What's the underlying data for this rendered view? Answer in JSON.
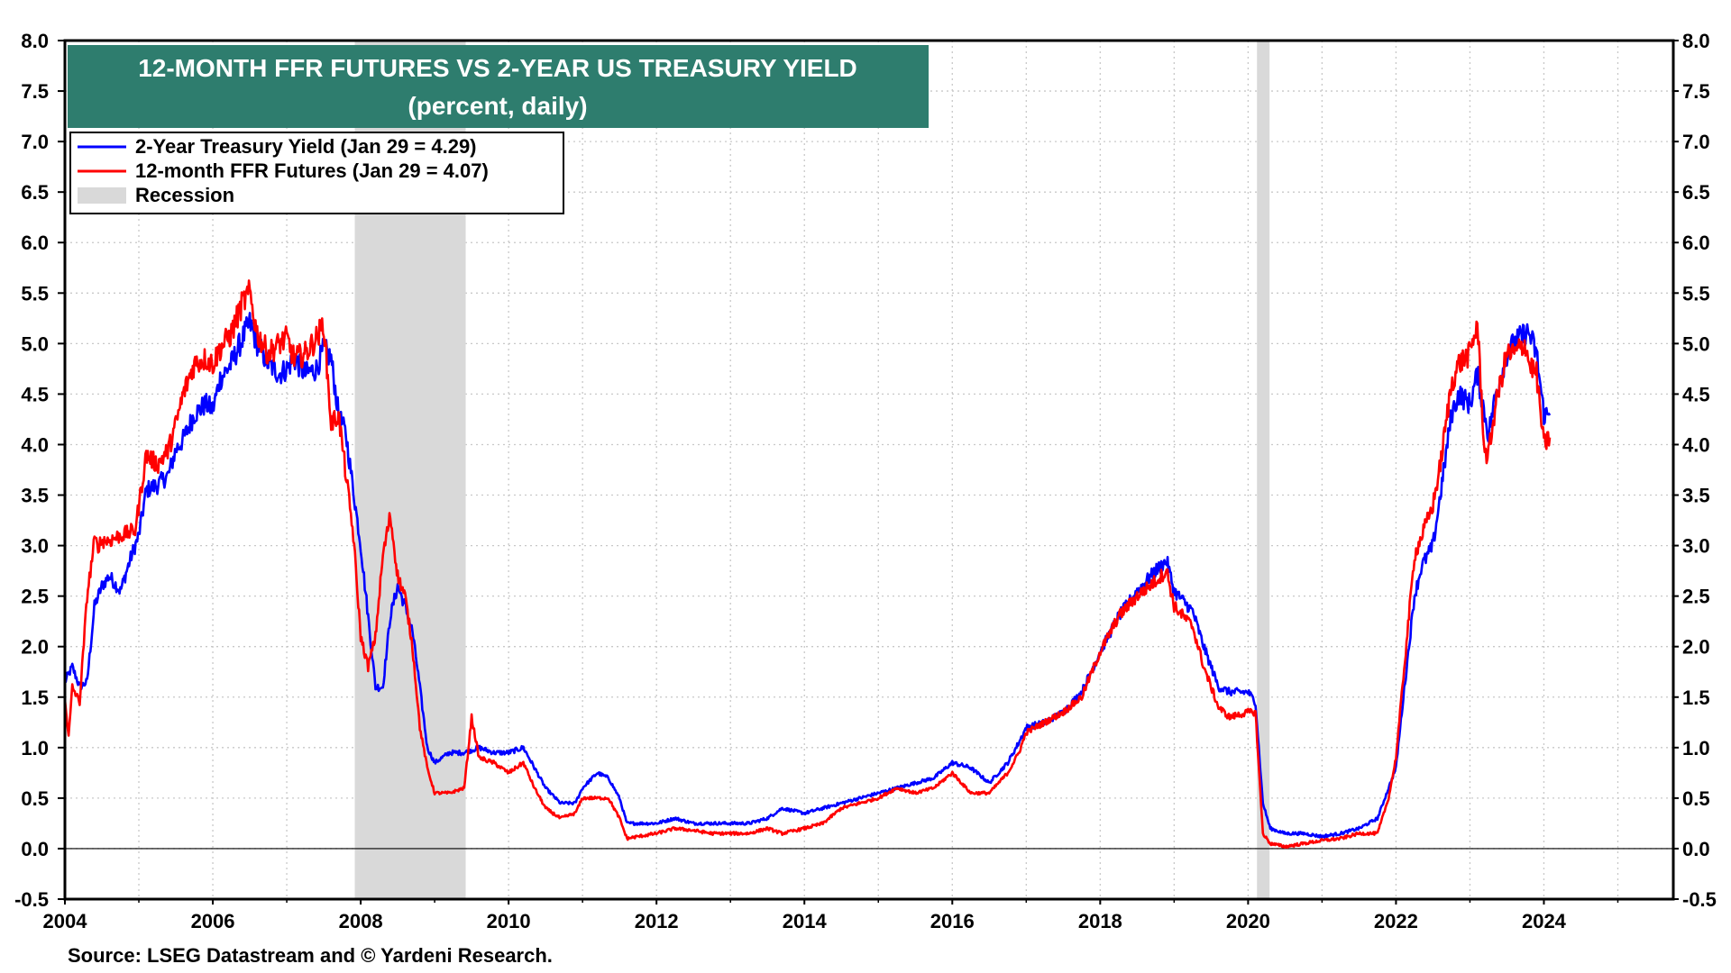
{
  "chart_data": {
    "type": "line",
    "title": "12-MONTH FFR FUTURES VS 2-YEAR US TREASURY YIELD",
    "subtitle": "(percent, daily)",
    "source": "Source: LSEG Datastream and © Yardeni Research.",
    "xlim": [
      2004,
      2025.75
    ],
    "ylim": [
      -0.5,
      8.0
    ],
    "x_ticks": [
      "2004",
      "2006",
      "2008",
      "2010",
      "2012",
      "2014",
      "2016",
      "2018",
      "2020",
      "2022",
      "2024"
    ],
    "y_ticks": [
      "-0.5",
      "0.0",
      "0.5",
      "1.0",
      "1.5",
      "2.0",
      "2.5",
      "3.0",
      "3.5",
      "4.0",
      "4.5",
      "5.0",
      "5.5",
      "6.0",
      "6.5",
      "7.0",
      "7.5",
      "8.0"
    ],
    "grid": true,
    "legend_position": "top-left",
    "colors": {
      "title_bg": "#2e7d6e",
      "treasury": "#0000ff",
      "futures": "#ff0000",
      "recession": "#d9d9d9"
    },
    "recessions": [
      {
        "start": 2007.92,
        "end": 2009.42
      },
      {
        "start": 2020.12,
        "end": 2020.29
      }
    ],
    "series": [
      {
        "name": "2-Year Treasury Yield (Jan 29 = 4.29)",
        "color": "#0000ff",
        "x": [
          2004.0,
          2004.1,
          2004.2,
          2004.3,
          2004.4,
          2004.5,
          2004.6,
          2004.75,
          2004.9,
          2005.0,
          2005.1,
          2005.25,
          2005.4,
          2005.5,
          2005.6,
          2005.75,
          2005.9,
          2006.0,
          2006.1,
          2006.25,
          2006.4,
          2006.5,
          2006.6,
          2006.75,
          2006.9,
          2007.0,
          2007.1,
          2007.25,
          2007.4,
          2007.5,
          2007.6,
          2007.7,
          2007.8,
          2007.9,
          2008.0,
          2008.1,
          2008.2,
          2008.3,
          2008.4,
          2008.5,
          2008.6,
          2008.7,
          2008.8,
          2008.9,
          2009.0,
          2009.2,
          2009.4,
          2009.6,
          2009.8,
          2010.0,
          2010.2,
          2010.35,
          2010.5,
          2010.7,
          2010.9,
          2011.0,
          2011.2,
          2011.35,
          2011.5,
          2011.6,
          2011.75,
          2012.0,
          2012.25,
          2012.5,
          2012.75,
          2013.0,
          2013.25,
          2013.5,
          2013.7,
          2014.0,
          2014.25,
          2014.5,
          2014.75,
          2015.0,
          2015.25,
          2015.5,
          2015.75,
          2016.0,
          2016.25,
          2016.5,
          2016.75,
          2016.9,
          2017.0,
          2017.25,
          2017.5,
          2017.75,
          2018.0,
          2018.25,
          2018.5,
          2018.75,
          2018.9,
          2019.0,
          2019.25,
          2019.4,
          2019.6,
          2019.75,
          2020.0,
          2020.1,
          2020.2,
          2020.3,
          2020.5,
          2020.75,
          2021.0,
          2021.25,
          2021.5,
          2021.75,
          2021.9,
          2022.0,
          2022.1,
          2022.25,
          2022.35,
          2022.5,
          2022.6,
          2022.75,
          2022.85,
          2023.0,
          2023.1,
          2023.2,
          2023.25,
          2023.35,
          2023.5,
          2023.6,
          2023.75,
          2023.8,
          2023.9,
          2024.0,
          2024.08
        ],
        "y": [
          1.65,
          1.8,
          1.6,
          1.65,
          2.4,
          2.6,
          2.7,
          2.55,
          2.9,
          3.1,
          3.55,
          3.6,
          3.7,
          3.95,
          4.05,
          4.3,
          4.4,
          4.35,
          4.65,
          4.8,
          5.05,
          5.2,
          5.0,
          4.8,
          4.7,
          4.75,
          4.85,
          4.7,
          4.75,
          4.95,
          4.85,
          4.3,
          4.1,
          3.55,
          3.0,
          2.3,
          1.6,
          1.6,
          2.3,
          2.6,
          2.4,
          2.15,
          1.6,
          1.0,
          0.85,
          0.95,
          0.95,
          1.0,
          0.95,
          0.95,
          1.0,
          0.8,
          0.6,
          0.45,
          0.45,
          0.6,
          0.75,
          0.7,
          0.5,
          0.25,
          0.25,
          0.25,
          0.3,
          0.25,
          0.25,
          0.25,
          0.25,
          0.3,
          0.4,
          0.35,
          0.4,
          0.45,
          0.5,
          0.55,
          0.6,
          0.65,
          0.7,
          0.85,
          0.8,
          0.65,
          0.85,
          1.05,
          1.2,
          1.25,
          1.35,
          1.55,
          1.95,
          2.3,
          2.55,
          2.75,
          2.85,
          2.55,
          2.35,
          2.0,
          1.6,
          1.55,
          1.55,
          1.45,
          0.45,
          0.2,
          0.15,
          0.15,
          0.12,
          0.15,
          0.2,
          0.3,
          0.6,
          0.8,
          1.5,
          2.5,
          2.8,
          3.0,
          3.5,
          4.3,
          4.5,
          4.4,
          4.7,
          4.3,
          4.1,
          4.5,
          4.9,
          5.0,
          5.1,
          5.1,
          4.9,
          4.3,
          4.29
        ]
      },
      {
        "name": "12-month FFR Futures (Jan 29 = 4.07)",
        "color": "#ff0000",
        "x": [
          2004.0,
          2004.05,
          2004.1,
          2004.2,
          2004.3,
          2004.4,
          2004.45,
          2004.5,
          2004.6,
          2004.75,
          2004.95,
          2005.1,
          2005.25,
          2005.4,
          2005.5,
          2005.6,
          2005.75,
          2005.9,
          2006.0,
          2006.1,
          2006.25,
          2006.4,
          2006.5,
          2006.6,
          2006.75,
          2006.9,
          2007.0,
          2007.1,
          2007.25,
          2007.4,
          2007.5,
          2007.6,
          2007.7,
          2007.8,
          2007.9,
          2008.0,
          2008.1,
          2008.2,
          2008.3,
          2008.4,
          2008.5,
          2008.6,
          2008.7,
          2008.8,
          2008.9,
          2009.0,
          2009.2,
          2009.4,
          2009.5,
          2009.6,
          2009.8,
          2010.0,
          2010.2,
          2010.35,
          2010.5,
          2010.7,
          2010.9,
          2011.0,
          2011.2,
          2011.35,
          2011.5,
          2011.6,
          2011.75,
          2012.0,
          2012.25,
          2012.5,
          2012.75,
          2013.0,
          2013.25,
          2013.5,
          2013.7,
          2014.0,
          2014.25,
          2014.5,
          2014.75,
          2015.0,
          2015.25,
          2015.5,
          2015.75,
          2016.0,
          2016.25,
          2016.5,
          2016.75,
          2016.9,
          2017.0,
          2017.25,
          2017.5,
          2017.75,
          2018.0,
          2018.25,
          2018.5,
          2018.75,
          2018.9,
          2019.0,
          2019.25,
          2019.4,
          2019.6,
          2019.75,
          2020.0,
          2020.1,
          2020.2,
          2020.3,
          2020.5,
          2020.75,
          2021.0,
          2021.25,
          2021.5,
          2021.75,
          2021.9,
          2022.0,
          2022.1,
          2022.25,
          2022.35,
          2022.5,
          2022.6,
          2022.75,
          2022.85,
          2023.0,
          2023.1,
          2023.2,
          2023.25,
          2023.35,
          2023.5,
          2023.6,
          2023.75,
          2023.8,
          2023.9,
          2024.0,
          2024.08
        ],
        "y": [
          1.5,
          1.1,
          1.6,
          1.45,
          2.5,
          3.05,
          3.0,
          3.05,
          3.05,
          3.1,
          3.15,
          3.9,
          3.8,
          3.95,
          4.2,
          4.5,
          4.8,
          4.85,
          4.8,
          4.95,
          5.1,
          5.4,
          5.5,
          5.1,
          4.9,
          5.0,
          5.05,
          4.85,
          4.9,
          5.05,
          5.2,
          4.2,
          4.3,
          3.7,
          3.1,
          2.1,
          1.8,
          2.1,
          2.9,
          3.3,
          2.7,
          2.5,
          2.0,
          1.2,
          0.8,
          0.55,
          0.55,
          0.6,
          1.3,
          0.9,
          0.85,
          0.75,
          0.85,
          0.6,
          0.4,
          0.3,
          0.35,
          0.5,
          0.5,
          0.5,
          0.3,
          0.1,
          0.12,
          0.15,
          0.2,
          0.18,
          0.15,
          0.15,
          0.15,
          0.2,
          0.15,
          0.2,
          0.25,
          0.4,
          0.45,
          0.5,
          0.6,
          0.55,
          0.6,
          0.75,
          0.55,
          0.55,
          0.75,
          0.95,
          1.15,
          1.25,
          1.35,
          1.5,
          1.95,
          2.3,
          2.5,
          2.65,
          2.75,
          2.4,
          2.2,
          1.8,
          1.4,
          1.3,
          1.35,
          1.35,
          0.15,
          0.05,
          0.02,
          0.05,
          0.08,
          0.1,
          0.15,
          0.15,
          0.5,
          0.9,
          1.7,
          2.9,
          3.1,
          3.4,
          3.8,
          4.6,
          4.8,
          4.9,
          5.2,
          3.9,
          3.9,
          4.4,
          4.9,
          4.9,
          5.0,
          4.8,
          4.7,
          4.0,
          4.07
        ]
      }
    ]
  }
}
